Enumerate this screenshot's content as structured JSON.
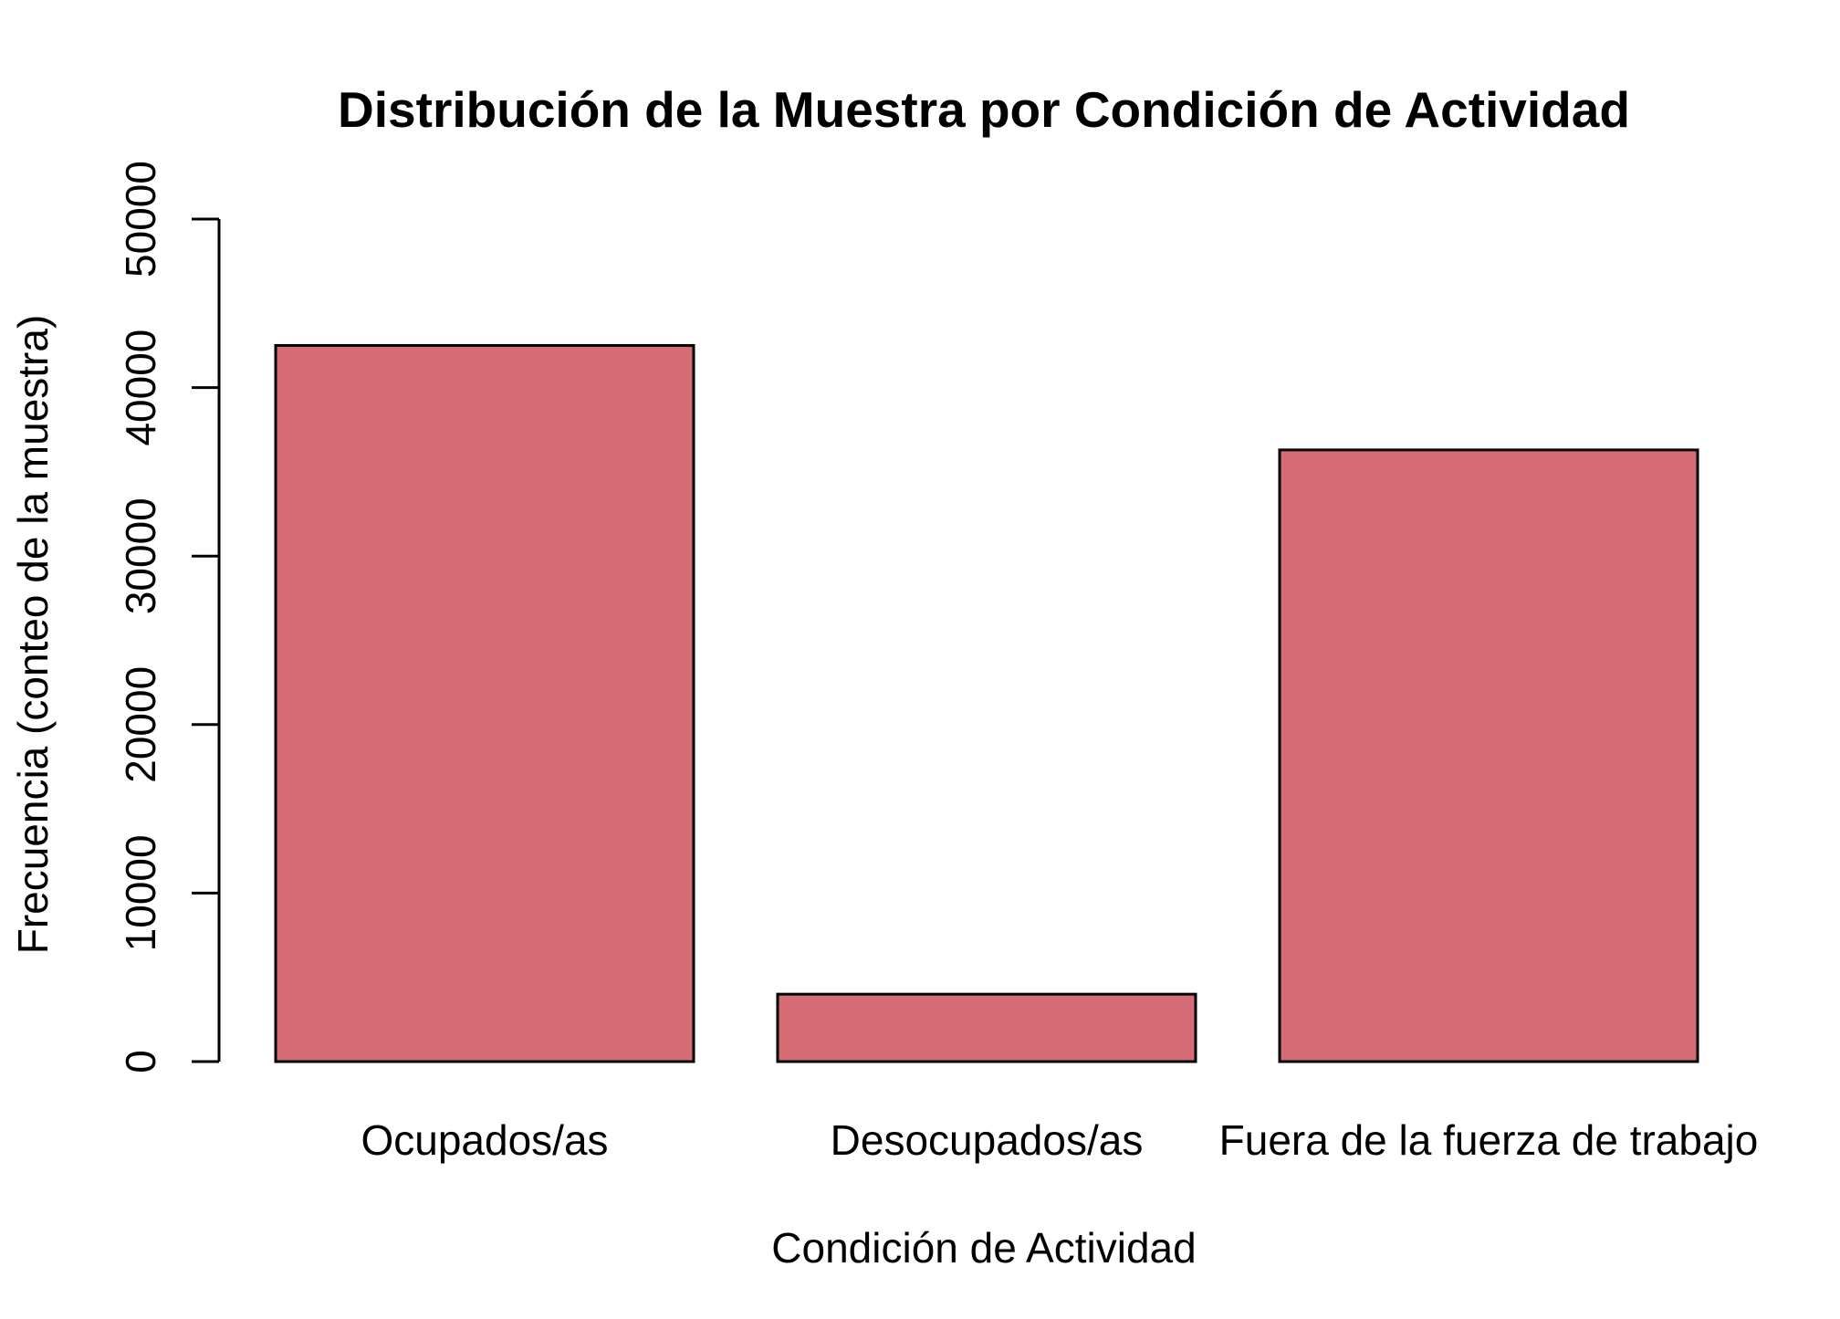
{
  "chart_data": {
    "type": "bar",
    "title": "Distribución de la Muestra por Condición de Actividad",
    "xlabel": "Condición de Actividad",
    "ylabel": "Frecuencia (conteo de la muestra)",
    "categories": [
      "Ocupados/as",
      "Desocupados/as",
      "Fuera de la fuerza de trabajo"
    ],
    "values": [
      42500,
      4000,
      36300
    ],
    "ylim": [
      0,
      50000
    ],
    "yticks": [
      0,
      10000,
      20000,
      30000,
      40000,
      50000
    ],
    "ytick_labels": [
      "0",
      "10000",
      "20000",
      "30000",
      "40000",
      "50000"
    ],
    "grid": false,
    "bar_color": "#d66c76",
    "bar_edge_color": "#000000"
  }
}
